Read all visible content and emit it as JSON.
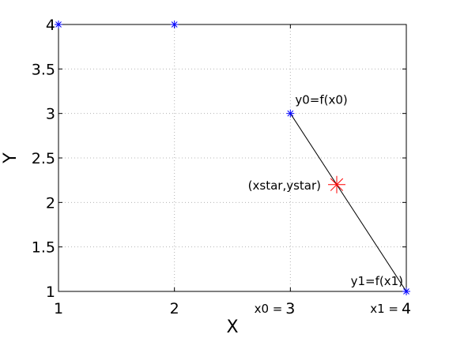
{
  "chart_data": {
    "type": "scatter",
    "xlabel": "X",
    "ylabel": "Y",
    "xlim": [
      1,
      4
    ],
    "ylim": [
      1,
      4
    ],
    "xticks": [
      1,
      2,
      3,
      4
    ],
    "yticks": [
      1,
      1.5,
      2,
      2.5,
      3,
      3.5,
      4
    ],
    "xtick_labels": [
      "1",
      "2",
      "3",
      "4"
    ],
    "ytick_labels": [
      "1",
      "1.5",
      "2",
      "2.5",
      "3",
      "3.5",
      "4"
    ],
    "grid": true,
    "series": [
      {
        "marker": "asterisk",
        "color": "#0000ff",
        "points": [
          {
            "x": 1,
            "y": 4
          },
          {
            "x": 2,
            "y": 4
          },
          {
            "x": 3,
            "y": 3
          },
          {
            "x": 4,
            "y": 1
          }
        ]
      }
    ],
    "interpolation_line": {
      "color": "#000000",
      "from": {
        "x": 3,
        "y": 3
      },
      "to": {
        "x": 4,
        "y": 1
      }
    },
    "estimate_point": {
      "marker": "asterisk",
      "color": "#ff0000",
      "x": 3.4,
      "y": 2.2
    },
    "annotations": [
      {
        "text": "y0=f(x0)",
        "x": 3,
        "y": 3,
        "anchor": "above-right"
      },
      {
        "text": "(xstar,ystar)",
        "x": 3.4,
        "y": 2.2,
        "anchor": "left"
      },
      {
        "text": "y1=f(x1)",
        "x": 4,
        "y": 1,
        "anchor": "above-left"
      },
      {
        "text": "x0 =",
        "x": 3,
        "y": 1,
        "anchor": "below-left"
      },
      {
        "text": "x1 =",
        "x": 4,
        "y": 1,
        "anchor": "below-left"
      }
    ]
  }
}
